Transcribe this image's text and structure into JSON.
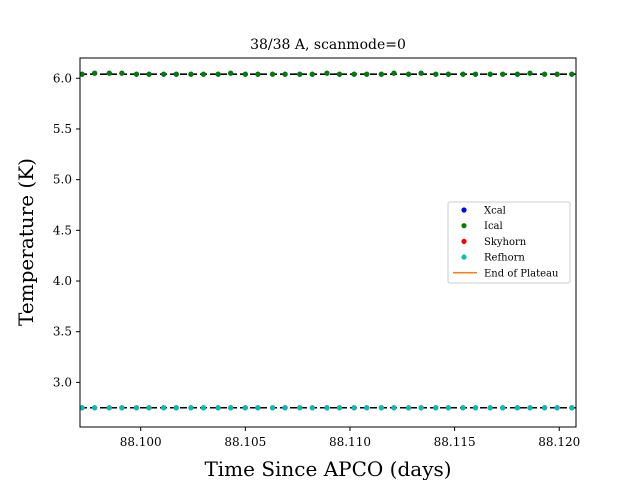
{
  "chart_data": {
    "type": "scatter",
    "title": "38/38 A, scanmode=0",
    "xlabel": "Time Since APCO (days)",
    "ylabel": "Temperature (K)",
    "xlim": [
      88.0971,
      88.1208
    ],
    "ylim": [
      2.56,
      6.2
    ],
    "xticks": [
      88.1,
      88.105,
      88.11,
      88.115,
      88.12
    ],
    "xtick_labels": [
      "88.100",
      "88.105",
      "88.110",
      "88.115",
      "88.120"
    ],
    "yticks": [
      3.0,
      3.5,
      4.0,
      4.5,
      5.0,
      5.5,
      6.0
    ],
    "ytick_labels": [
      "3.0",
      "3.5",
      "4.0",
      "4.5",
      "5.0",
      "5.5",
      "6.0"
    ],
    "x": [
      88.0972,
      88.0978,
      88.0985,
      88.0991,
      88.0998,
      88.1004,
      88.1011,
      88.1017,
      88.1024,
      88.103,
      88.1037,
      88.1043,
      88.105,
      88.1056,
      88.1063,
      88.1069,
      88.1076,
      88.1082,
      88.1089,
      88.1095,
      88.1102,
      88.1108,
      88.1115,
      88.1121,
      88.1128,
      88.1134,
      88.1141,
      88.1147,
      88.1154,
      88.116,
      88.1167,
      88.1173,
      88.118,
      88.1186,
      88.1193,
      88.1199,
      88.1206
    ],
    "series": [
      {
        "name": "Xcal",
        "color": "#0000ff",
        "values": [
          6.04,
          6.05,
          6.05,
          6.05,
          6.04,
          6.04,
          6.04,
          6.04,
          6.04,
          6.04,
          6.04,
          6.05,
          6.04,
          6.04,
          6.04,
          6.04,
          6.04,
          6.04,
          6.05,
          6.04,
          6.04,
          6.04,
          6.04,
          6.05,
          6.04,
          6.05,
          6.04,
          6.04,
          6.04,
          6.04,
          6.04,
          6.04,
          6.04,
          6.05,
          6.04,
          6.04,
          6.04
        ]
      },
      {
        "name": "Ical",
        "color": "#008000",
        "values": [
          6.04,
          6.05,
          6.05,
          6.05,
          6.04,
          6.04,
          6.04,
          6.04,
          6.04,
          6.04,
          6.04,
          6.05,
          6.04,
          6.04,
          6.04,
          6.04,
          6.04,
          6.04,
          6.05,
          6.04,
          6.04,
          6.04,
          6.04,
          6.05,
          6.04,
          6.05,
          6.04,
          6.04,
          6.04,
          6.04,
          6.04,
          6.04,
          6.04,
          6.05,
          6.04,
          6.04,
          6.04
        ]
      },
      {
        "name": "Skyhorn",
        "color": "#ff0000",
        "values": [
          2.75,
          2.75,
          2.75,
          2.75,
          2.75,
          2.75,
          2.75,
          2.75,
          2.75,
          2.75,
          2.75,
          2.75,
          2.75,
          2.75,
          2.75,
          2.75,
          2.75,
          2.75,
          2.75,
          2.75,
          2.75,
          2.75,
          2.75,
          2.75,
          2.75,
          2.75,
          2.75,
          2.75,
          2.75,
          2.75,
          2.75,
          2.75,
          2.75,
          2.75,
          2.75,
          2.75,
          2.75
        ]
      },
      {
        "name": "Refhorn",
        "color": "#00bfbf",
        "values": [
          2.75,
          2.75,
          2.75,
          2.75,
          2.75,
          2.75,
          2.75,
          2.75,
          2.75,
          2.75,
          2.75,
          2.75,
          2.75,
          2.75,
          2.75,
          2.75,
          2.75,
          2.75,
          2.75,
          2.75,
          2.75,
          2.75,
          2.75,
          2.75,
          2.75,
          2.75,
          2.75,
          2.75,
          2.75,
          2.75,
          2.75,
          2.75,
          2.75,
          2.75,
          2.75,
          2.75,
          2.75
        ]
      }
    ],
    "reference_lines": [
      6.04,
      2.75
    ],
    "reference_line_color": "#000000",
    "legend": {
      "placement": "center-right",
      "entries": [
        {
          "label": "Xcal",
          "marker": "dot",
          "color": "#0000ff"
        },
        {
          "label": "Ical",
          "marker": "dot",
          "color": "#008000"
        },
        {
          "label": "Skyhorn",
          "marker": "dot",
          "color": "#ff0000"
        },
        {
          "label": "Refhorn",
          "marker": "dot",
          "color": "#00bfbf"
        },
        {
          "label": "End of Plateau",
          "marker": "line",
          "color": "#ff7f0e"
        }
      ]
    },
    "grid": false
  }
}
